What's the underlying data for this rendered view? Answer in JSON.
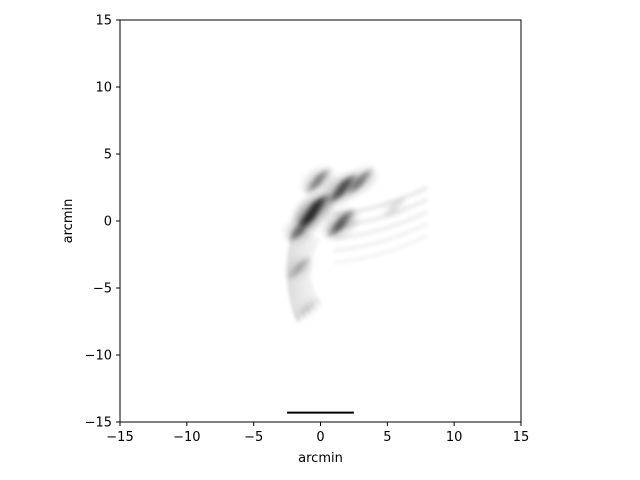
{
  "chart_data": {
    "type": "heatmap",
    "title": "",
    "xlabel": "arcmin",
    "ylabel": "arcmin",
    "xlim": [
      -15,
      15
    ],
    "ylim": [
      -15,
      15
    ],
    "xticks": [
      -15,
      -10,
      -5,
      0,
      5,
      10,
      15
    ],
    "yticks": [
      -15,
      -10,
      -5,
      0,
      5,
      10,
      15
    ],
    "xtick_labels": [
      "−15",
      "−10",
      "−5",
      "0",
      "5",
      "10",
      "15"
    ],
    "ytick_labels": [
      "−15",
      "−10",
      "−5",
      "0",
      "5",
      "10",
      "15"
    ],
    "grid": false,
    "colormap": "gray_r",
    "background_color": "#ffffff",
    "scale_bar": {
      "x_start": -2.5,
      "x_end": 2.5,
      "y": -14.3
    },
    "intensity_features": [
      {
        "x": -0.5,
        "y": 0.8,
        "weight": 0.9
      },
      {
        "x": 1.6,
        "y": 2.4,
        "weight": 0.7
      },
      {
        "x": 3.0,
        "y": 3.0,
        "weight": 0.45
      },
      {
        "x": -0.2,
        "y": 3.0,
        "weight": 0.45
      },
      {
        "x": 1.5,
        "y": -0.2,
        "weight": 0.6
      },
      {
        "x": -1.4,
        "y": -0.5,
        "weight": 0.55
      },
      {
        "x": -1.6,
        "y": -3.5,
        "weight": 0.25
      },
      {
        "x": -1.0,
        "y": -6.5,
        "weight": 0.12
      },
      {
        "x": 5.5,
        "y": 1.0,
        "weight": 0.12
      }
    ]
  }
}
